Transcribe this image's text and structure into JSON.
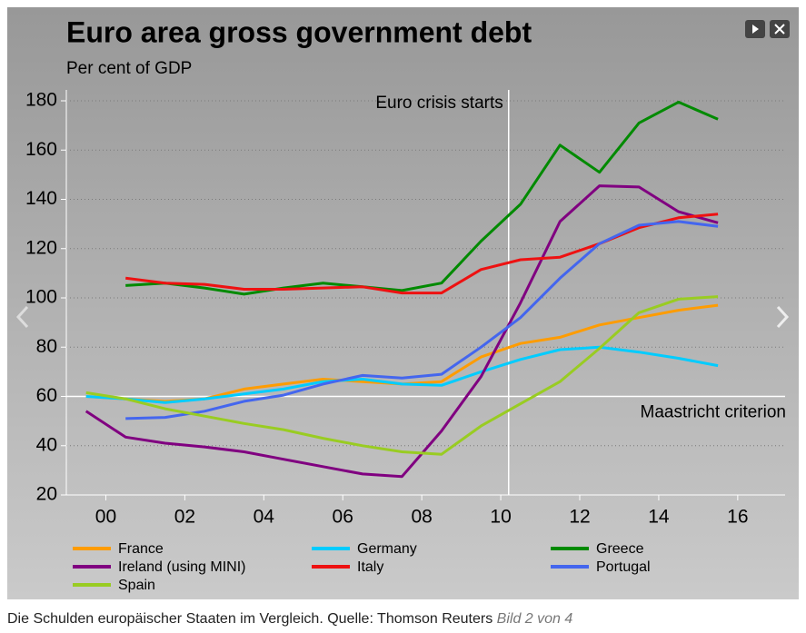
{
  "chart_data": {
    "type": "line",
    "title": "Euro area gross government debt",
    "subtitle": "Per cent of GDP",
    "caption": "Die Schulden europäischer Staaten im Vergleich. Quelle: Thomson Reuters",
    "caption_note": "Bild 2 von 4",
    "x": [
      1999.5,
      2000.5,
      2001.5,
      2002.5,
      2003.5,
      2004.5,
      2005.5,
      2006.5,
      2007.5,
      2008.5,
      2009.5,
      2010.5,
      2011.5,
      2012.5,
      2013.5,
      2014.5,
      2015.5
    ],
    "xlim": [
      1999,
      2017.2
    ],
    "xticks": [
      {
        "value": 2000,
        "label": "00"
      },
      {
        "value": 2002,
        "label": "02"
      },
      {
        "value": 2004,
        "label": "04"
      },
      {
        "value": 2006,
        "label": "06"
      },
      {
        "value": 2008,
        "label": "08"
      },
      {
        "value": 2010,
        "label": "10"
      },
      {
        "value": 2012,
        "label": "12"
      },
      {
        "value": 2014,
        "label": "14"
      },
      {
        "value": 2016,
        "label": "16"
      }
    ],
    "ylim": [
      20,
      180
    ],
    "yticks": [
      20,
      40,
      60,
      80,
      100,
      120,
      140,
      160,
      180
    ],
    "grid": true,
    "annotations": [
      {
        "text": "Euro crisis starts",
        "x": 2010.2
      },
      {
        "text": "Maastricht criterion",
        "y": 60
      }
    ],
    "series": [
      {
        "name": "France",
        "color": "#ff9c00",
        "values": [
          60,
          59,
          58,
          59,
          63,
          65,
          67,
          66,
          65,
          66,
          76,
          81.5,
          84,
          89,
          92,
          95,
          97
        ]
      },
      {
        "name": "Germany",
        "color": "#00ccff",
        "values": [
          60,
          59,
          57.5,
          59,
          61,
          63,
          66,
          67,
          65,
          64.5,
          70,
          75,
          79,
          80,
          78,
          75.5,
          72.5
        ]
      },
      {
        "name": "Greece",
        "color": "#008a00",
        "values": [
          null,
          105,
          106,
          104,
          101.5,
          104,
          106,
          104.5,
          103,
          106,
          123,
          138,
          162,
          151,
          171,
          179.5,
          172.5
        ]
      },
      {
        "name": "Ireland (using MINI)",
        "color": "#800080",
        "values": [
          54,
          43.5,
          41,
          39.5,
          37.5,
          34.5,
          31.5,
          28.5,
          27.5,
          46,
          68,
          98,
          131,
          145.5,
          145,
          135,
          130.5
        ]
      },
      {
        "name": "Italy",
        "color": "#ee1111",
        "values": [
          null,
          108,
          106,
          105.5,
          103.5,
          103.5,
          104,
          104.5,
          102,
          102,
          111.5,
          115.5,
          116.5,
          122,
          128.5,
          132.5,
          134
        ]
      },
      {
        "name": "Portugal",
        "color": "#4466ee",
        "values": [
          null,
          51,
          51.5,
          54,
          58,
          60.5,
          65,
          68.5,
          67.5,
          69,
          80,
          92,
          108,
          122,
          129.5,
          131,
          129
        ]
      },
      {
        "name": "Spain",
        "color": "#99cc22",
        "values": [
          61.5,
          59,
          55,
          52,
          49,
          46.5,
          43,
          40,
          37.5,
          36.5,
          48,
          57,
          66,
          79.5,
          94,
          99.5,
          100.5
        ]
      }
    ]
  }
}
